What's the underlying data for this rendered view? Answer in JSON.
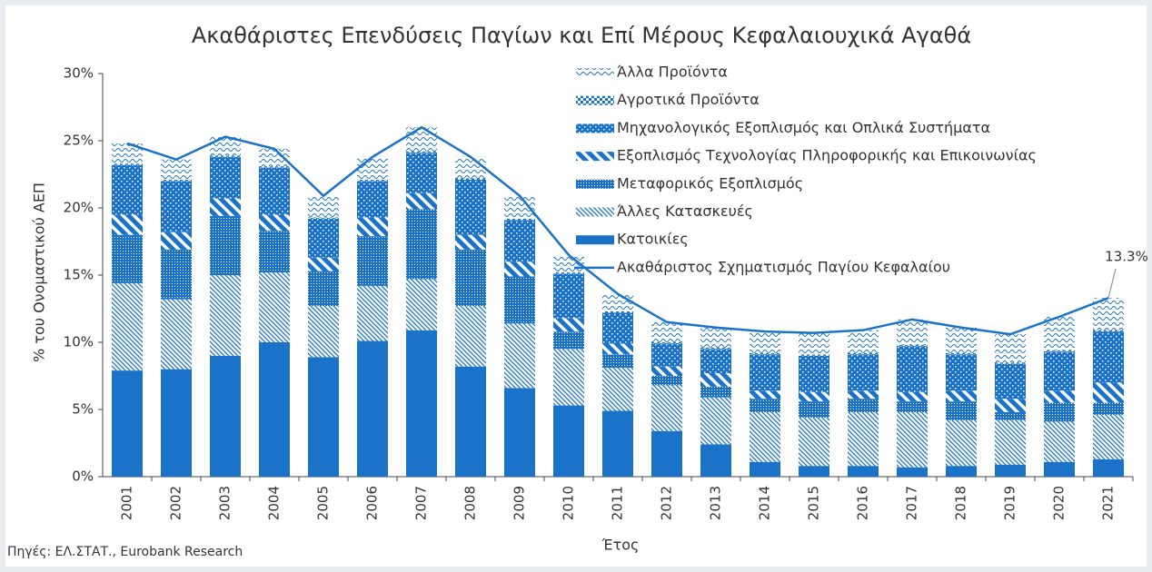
{
  "chart_data": {
    "type": "bar",
    "title": "Ακαθάριστες Επενδύσεις Παγίων και Επί Μέρους Κεφαλαιουχικά Αγαθά",
    "y_label": "% του Ονομαστικού ΑΕΠ",
    "x_label": "Έτος",
    "source": "Πηγές: ΕΛ.ΣΤΑΤ., Eurobank Research",
    "stacked": true,
    "categories": [
      "2001",
      "2002",
      "2003",
      "2004",
      "2005",
      "2006",
      "2007",
      "2008",
      "2009",
      "2010",
      "2011",
      "2012",
      "2013",
      "2014",
      "2015",
      "2016",
      "2017",
      "2018",
      "2019",
      "2020",
      "2021"
    ],
    "series": [
      {
        "name": "Κατοικίες",
        "color": "#1a73c8",
        "values": [
          7.9,
          8.0,
          9.0,
          10.0,
          8.9,
          10.1,
          10.9,
          8.2,
          6.6,
          5.3,
          4.9,
          3.4,
          2.4,
          1.1,
          0.8,
          0.8,
          0.7,
          0.8,
          0.9,
          1.1,
          1.3
        ]
      },
      {
        "name": "Άλλες Κατασκευές",
        "color": "#1a73c8",
        "values": [
          6.5,
          5.2,
          6.0,
          5.2,
          3.8,
          4.1,
          3.8,
          4.5,
          4.8,
          4.2,
          3.2,
          3.4,
          3.5,
          3.7,
          3.6,
          4.0,
          4.1,
          3.4,
          3.3,
          3.0,
          3.3
        ]
      },
      {
        "name": "Μεταφορικός Εξοπλισμός",
        "color": "#1a73c8",
        "values": [
          3.6,
          3.7,
          4.4,
          3.1,
          2.6,
          3.7,
          5.2,
          4.2,
          3.5,
          1.3,
          1.0,
          0.7,
          0.8,
          1.0,
          1.2,
          1.0,
          0.8,
          1.4,
          0.6,
          1.4,
          0.9
        ]
      },
      {
        "name": "Εξοπλισμός Τεχνολογίας Πληροφορικής και Επικοινωνίας",
        "color": "#1a73c8",
        "values": [
          1.5,
          1.3,
          1.3,
          1.2,
          1.0,
          1.4,
          1.2,
          1.1,
          1.1,
          1.0,
          0.8,
          0.7,
          1.0,
          0.6,
          0.7,
          0.6,
          0.7,
          0.8,
          1.0,
          0.9,
          1.5
        ]
      },
      {
        "name": "Μηχανολογικός Εξοπλισμός και Οπλικά Συστήματα",
        "color": "#1a73c8",
        "values": [
          3.7,
          3.8,
          3.1,
          3.5,
          2.9,
          2.7,
          3.0,
          4.1,
          3.1,
          3.3,
          2.3,
          1.7,
          1.8,
          2.7,
          2.7,
          2.7,
          3.4,
          2.7,
          2.6,
          2.9,
          3.8
        ]
      },
      {
        "name": "Αγροτικά Προϊόντα",
        "color": "#1a73c8",
        "values": [
          0.1,
          0.1,
          0.1,
          0.1,
          0.1,
          0.1,
          0.1,
          0.1,
          0.1,
          0.1,
          0.1,
          0.1,
          0.1,
          0.1,
          0.1,
          0.1,
          0.1,
          0.1,
          0.1,
          0.1,
          0.1
        ]
      },
      {
        "name": "Άλλα Προϊόντα",
        "color": "#1a73c8",
        "values": [
          1.5,
          1.5,
          1.4,
          1.3,
          1.6,
          1.7,
          1.8,
          1.6,
          1.7,
          1.3,
          1.3,
          1.5,
          1.5,
          1.6,
          1.6,
          1.7,
          1.9,
          1.9,
          2.1,
          2.5,
          2.4
        ]
      },
      {
        "name": "Ακαθάριστος Σχηματισμός Παγίου Κεφαλαίου",
        "type": "line",
        "color": "#1a73c8",
        "values": [
          24.8,
          23.6,
          25.3,
          24.4,
          20.9,
          23.8,
          26.0,
          23.8,
          20.9,
          16.5,
          13.6,
          11.5,
          11.1,
          10.8,
          10.7,
          10.9,
          11.7,
          11.1,
          10.6,
          11.9,
          13.3
        ],
        "value_labels": [
          null,
          null,
          null,
          null,
          null,
          null,
          null,
          null,
          null,
          null,
          null,
          null,
          null,
          null,
          null,
          null,
          null,
          null,
          null,
          null,
          "13.3%"
        ]
      }
    ],
    "ylim": [
      0,
      30
    ],
    "yticks": [
      {
        "value": 0,
        "label": "0%"
      },
      {
        "value": 5,
        "label": "5%"
      },
      {
        "value": 10,
        "label": "10%"
      },
      {
        "value": 15,
        "label": "15%"
      },
      {
        "value": 20,
        "label": "20%"
      },
      {
        "value": 25,
        "label": "25%"
      },
      {
        "value": 30,
        "label": "30%"
      }
    ],
    "legend": "top-right"
  }
}
